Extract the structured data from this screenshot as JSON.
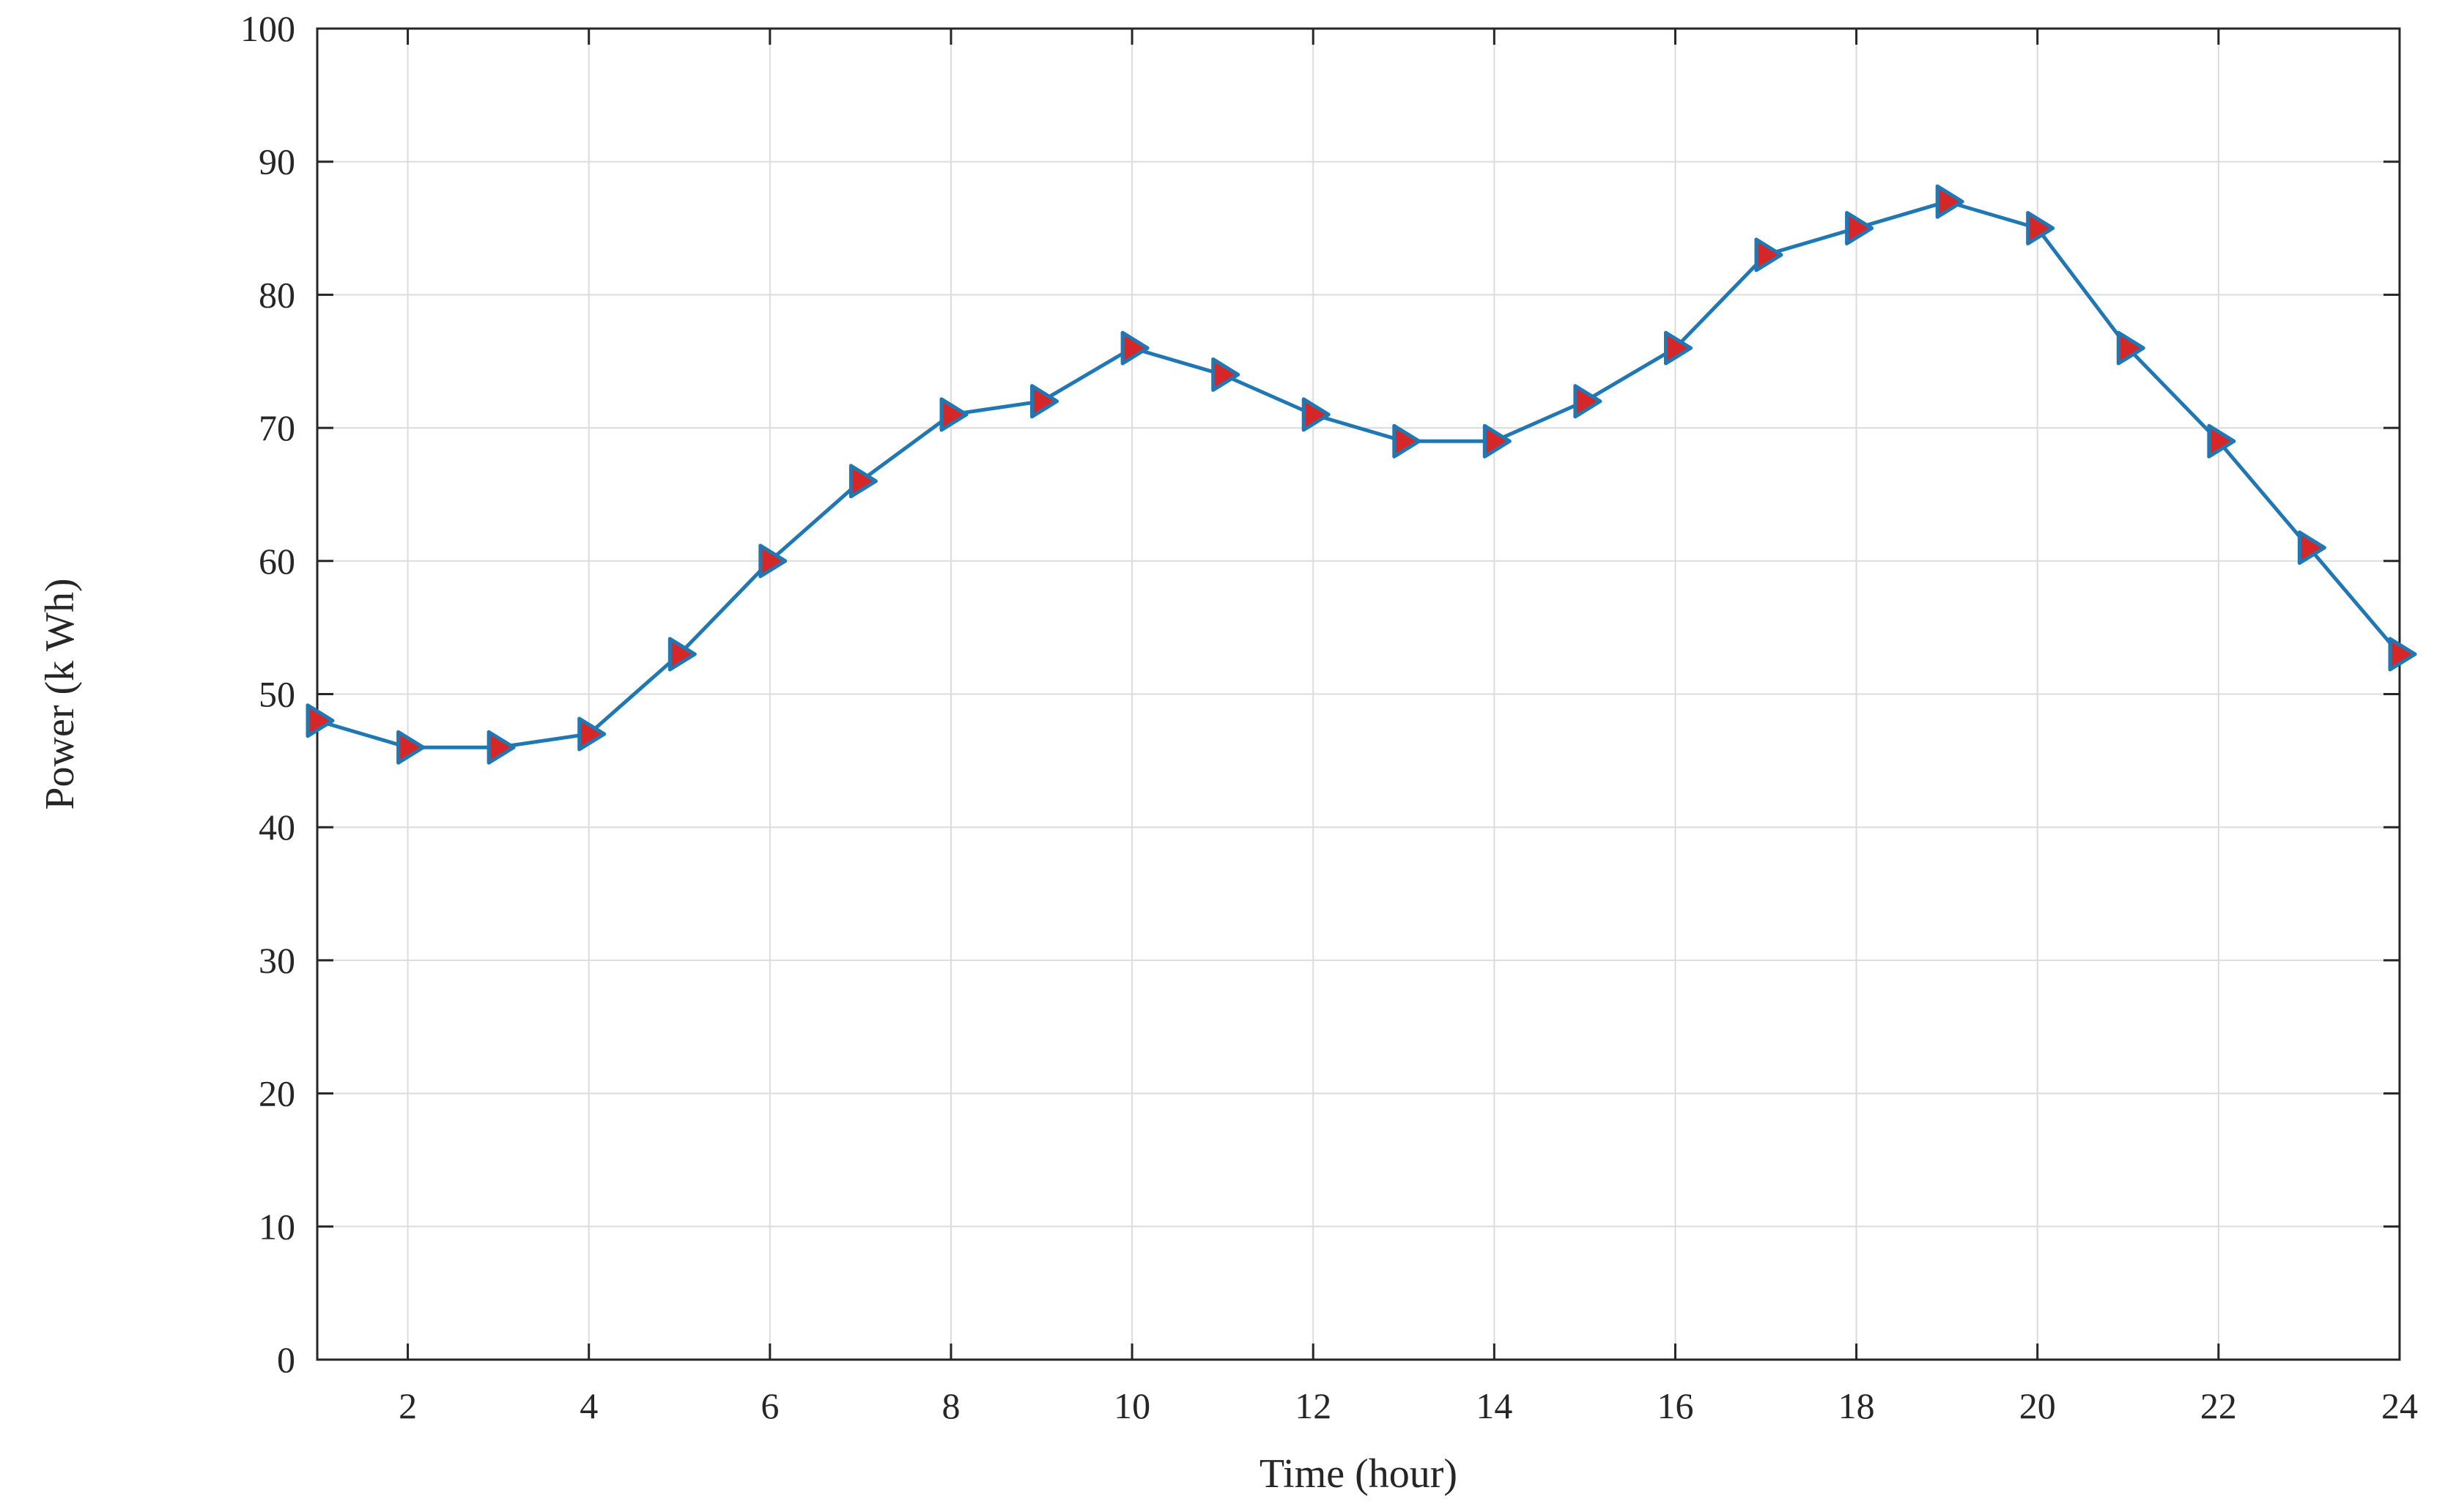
{
  "chart_data": {
    "type": "line",
    "title": "",
    "xlabel": "Time (hour)",
    "ylabel": "Power (k Wh)",
    "xlim": [
      1,
      24
    ],
    "ylim": [
      0,
      100
    ],
    "xticks": [
      2,
      4,
      6,
      8,
      10,
      12,
      14,
      16,
      18,
      20,
      22,
      24
    ],
    "yticks": [
      0,
      10,
      20,
      30,
      40,
      50,
      60,
      70,
      80,
      90,
      100
    ],
    "grid": true,
    "series": [
      {
        "x": [
          1,
          2,
          3,
          4,
          5,
          6,
          7,
          8,
          9,
          10,
          11,
          12,
          13,
          14,
          15,
          16,
          17,
          18,
          19,
          20,
          21,
          22,
          23,
          24
        ],
        "values": [
          48,
          46,
          46,
          47,
          53,
          60,
          66,
          71,
          72,
          76,
          74,
          71,
          69,
          69,
          72,
          76,
          83,
          85,
          87,
          85,
          76,
          69,
          61,
          53
        ],
        "color": "#1f77b4",
        "marker": "right-triangle",
        "marker_fill": "#d62728"
      }
    ]
  }
}
